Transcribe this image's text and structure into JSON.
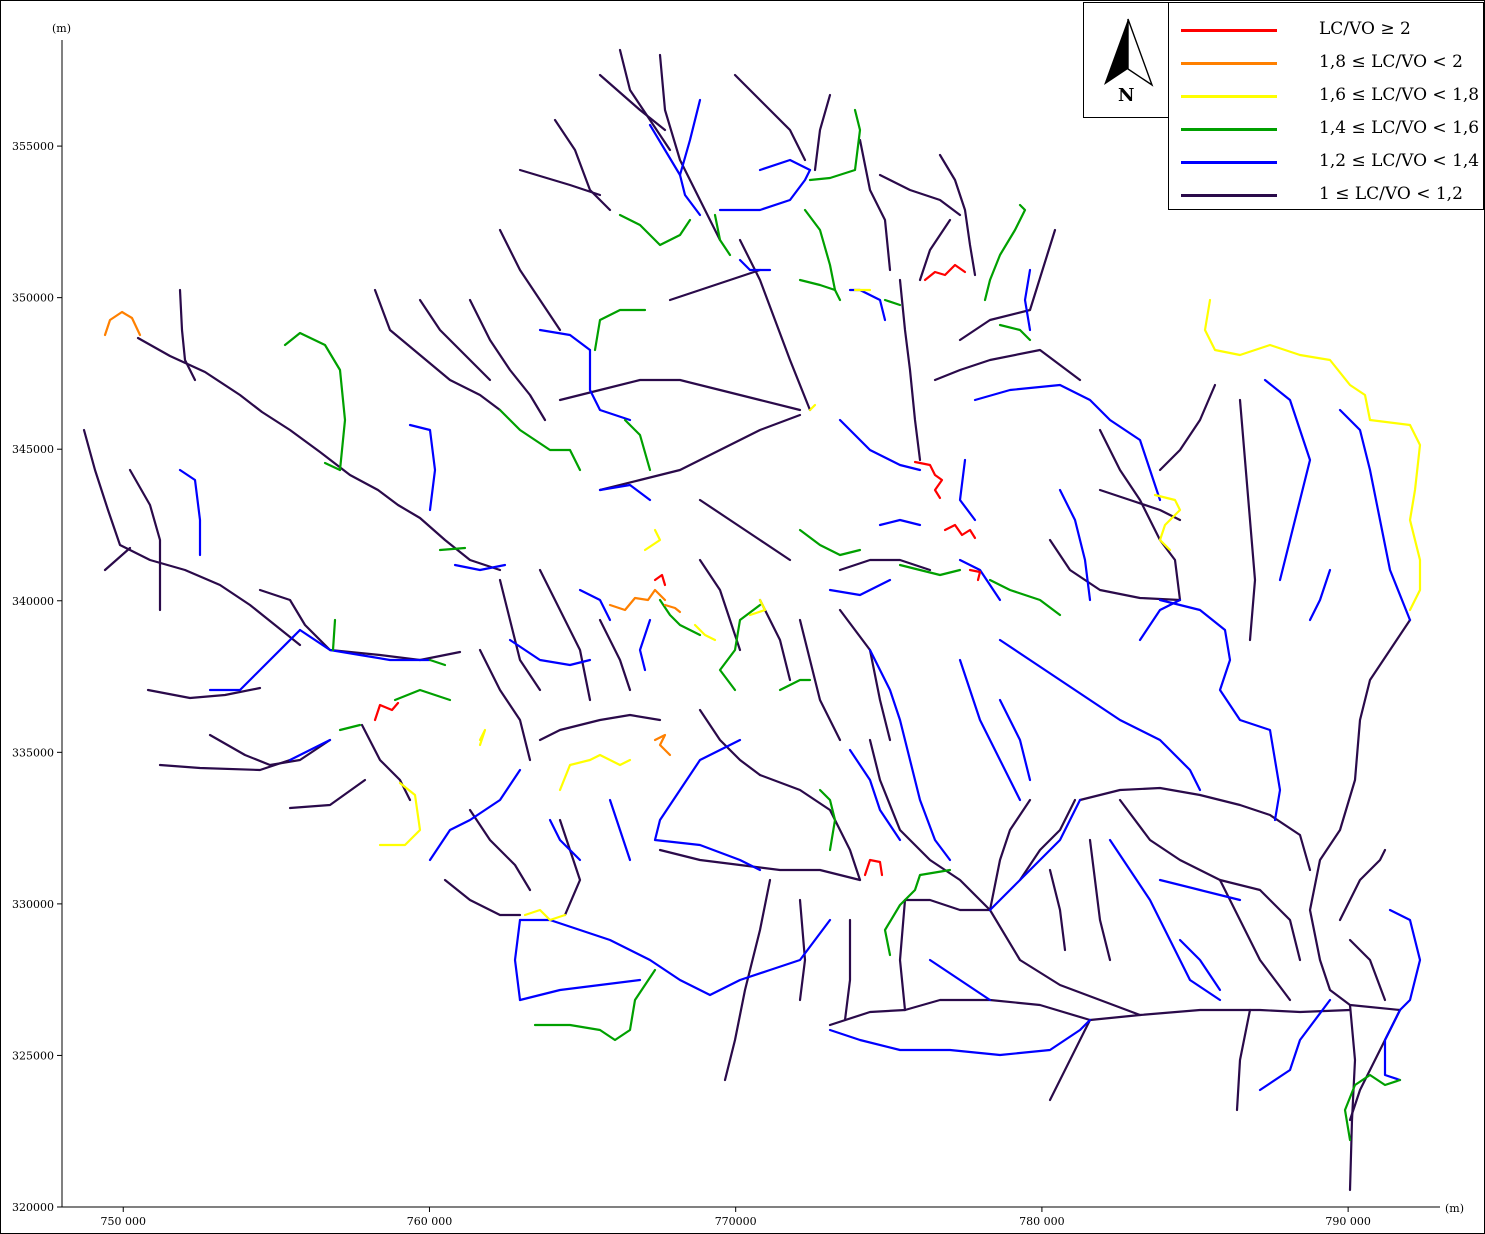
{
  "map": {
    "x_unit": "(m)",
    "y_unit": "(m)",
    "x_ticks": [
      {
        "value": 750000,
        "label": "750 000"
      },
      {
        "value": 760000,
        "label": "760 000"
      },
      {
        "value": 770000,
        "label": "770000"
      },
      {
        "value": 780000,
        "label": "780 000"
      },
      {
        "value": 790000,
        "label": "790 000"
      }
    ],
    "y_ticks": [
      {
        "value": 355000,
        "label": "355000"
      },
      {
        "value": 350000,
        "label": "350000"
      },
      {
        "value": 345000,
        "label": "345000"
      },
      {
        "value": 340000,
        "label": "340000"
      },
      {
        "value": 335000,
        "label": "335000"
      },
      {
        "value": 330000,
        "label": "330000"
      },
      {
        "value": 325000,
        "label": "325000"
      },
      {
        "value": 320000,
        "label": "320000"
      }
    ],
    "x_range": [
      748000,
      793000
    ],
    "y_range": [
      320000,
      358500
    ]
  },
  "north_arrow": {
    "letter": "N",
    "icon": "north-arrow-icon"
  },
  "legend": {
    "items": [
      {
        "label": "LC/VO ≥ 2",
        "color": "#ff0000"
      },
      {
        "label": "1,8 ≤ LC/VO < 2",
        "color": "#ff8000"
      },
      {
        "label": "1,6 ≤ LC/VO < 1,8",
        "color": "#ffff00"
      },
      {
        "label": "1,4 ≤ LC/VO < 1,6",
        "color": "#00a000"
      },
      {
        "label": "1,2 ≤ LC/VO < 1,4",
        "color": "#0000ff"
      },
      {
        "label": "1 ≤ LC/VO < 1,2",
        "color": "#2a0a4a"
      }
    ]
  },
  "colors": {
    "red": "#ff0000",
    "orange": "#ff8000",
    "yellow": "#ffff00",
    "green": "#00a000",
    "blue": "#0000ff",
    "dark": "#2a0a4a"
  }
}
